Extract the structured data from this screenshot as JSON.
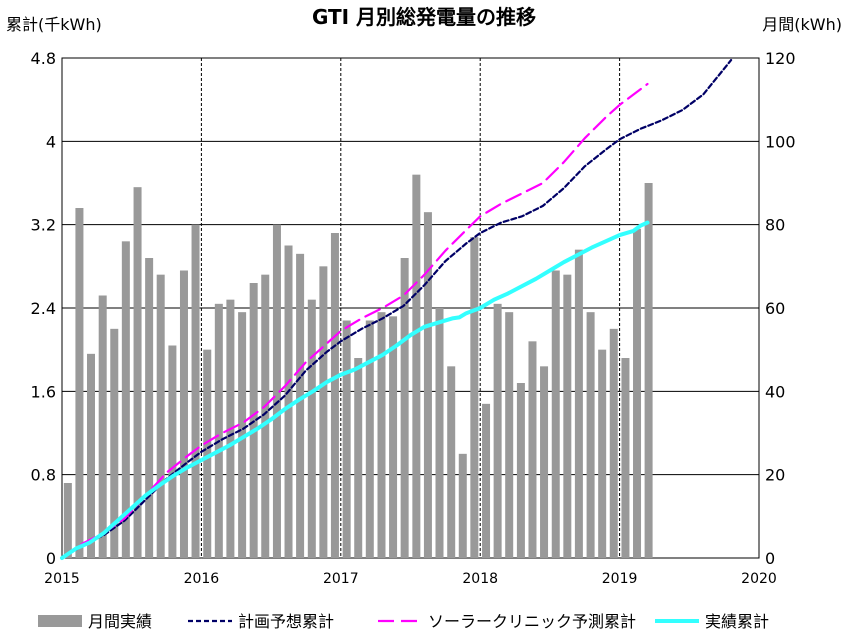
{
  "chart_data": {
    "type": "bar+line",
    "title": "GTI 月別総発電量の推移",
    "ylabel_left": "累計(千kWh)",
    "ylabel_right": "月間(kWh)",
    "x_tick_labels": [
      "2015",
      "2016",
      "2017",
      "2018",
      "2019",
      "2020"
    ],
    "xlim": [
      2015,
      2020
    ],
    "ylim_left": [
      0,
      4.8
    ],
    "ylim_right": [
      0,
      120
    ],
    "y_left_ticks": [
      "0",
      "0.8",
      "1.6",
      "2.4",
      "3.2",
      "4",
      "4.8"
    ],
    "y_right_ticks": [
      "0",
      "20",
      "40",
      "60",
      "80",
      "100",
      "120"
    ],
    "grid": "horizontal solid, vertical dashed at years",
    "legend_position": "bottom",
    "colors": {
      "bars": "#999999",
      "plan": "#000066",
      "clinic": "#ff00ff",
      "actual": "#33ffff"
    },
    "bars": {
      "name": "月間実績",
      "axis": "right",
      "x": [
        2015.042,
        2015.125,
        2015.208,
        2015.292,
        2015.375,
        2015.458,
        2015.542,
        2015.625,
        2015.708,
        2015.792,
        2015.875,
        2015.958,
        2016.042,
        2016.125,
        2016.208,
        2016.292,
        2016.375,
        2016.458,
        2016.542,
        2016.625,
        2016.708,
        2016.792,
        2016.875,
        2016.958,
        2017.042,
        2017.125,
        2017.208,
        2017.292,
        2017.375,
        2017.458,
        2017.542,
        2017.625,
        2017.708,
        2017.792,
        2017.875,
        2017.958,
        2018.042,
        2018.125,
        2018.208,
        2018.292,
        2018.375,
        2018.458,
        2018.542,
        2018.625,
        2018.708,
        2018.792,
        2018.875,
        2018.958,
        2019.042,
        2019.125,
        2019.208
      ],
      "values": [
        18,
        84,
        49,
        63,
        55,
        76,
        89,
        72,
        68,
        51,
        69,
        80,
        50,
        61,
        62,
        59,
        66,
        68,
        80,
        75,
        73,
        62,
        70,
        78,
        57,
        48,
        57,
        59,
        58,
        72,
        92,
        83,
        60,
        46,
        25,
        77,
        37,
        61,
        59,
        42,
        52,
        46,
        69,
        68,
        74,
        59,
        50,
        55,
        48,
        79,
        90
      ]
    },
    "series": [
      {
        "name": "計画予想累計",
        "axis": "left",
        "style": "dotted",
        "x": [
          2015.0,
          2015.15,
          2015.3,
          2015.45,
          2015.6,
          2015.75,
          2015.9,
          2016.0,
          2016.15,
          2016.3,
          2016.45,
          2016.6,
          2016.75,
          2016.9,
          2017.0,
          2017.15,
          2017.3,
          2017.45,
          2017.6,
          2017.75,
          2017.9,
          2018.0,
          2018.15,
          2018.3,
          2018.45,
          2018.6,
          2018.75,
          2018.9,
          2019.0,
          2019.15,
          2019.3,
          2019.45,
          2019.6,
          2019.8
        ],
        "values": [
          0.0,
          0.12,
          0.22,
          0.36,
          0.56,
          0.76,
          0.92,
          1.02,
          1.14,
          1.24,
          1.38,
          1.56,
          1.8,
          1.98,
          2.08,
          2.2,
          2.3,
          2.42,
          2.62,
          2.85,
          3.02,
          3.12,
          3.22,
          3.28,
          3.38,
          3.55,
          3.76,
          3.92,
          4.02,
          4.12,
          4.2,
          4.3,
          4.45,
          4.78
        ]
      },
      {
        "name": "ソーラークリニック予測累計",
        "axis": "left",
        "style": "dashed",
        "x": [
          2015.0,
          2015.15,
          2015.3,
          2015.45,
          2015.6,
          2015.75,
          2015.9,
          2016.0,
          2016.15,
          2016.3,
          2016.45,
          2016.6,
          2016.75,
          2016.9,
          2017.0,
          2017.15,
          2017.3,
          2017.45,
          2017.6,
          2017.75,
          2017.9,
          2018.0,
          2018.15,
          2018.3,
          2018.45,
          2018.6,
          2018.75,
          2018.9,
          2019.0,
          2019.1,
          2019.2
        ],
        "values": [
          0.0,
          0.14,
          0.24,
          0.38,
          0.6,
          0.82,
          0.98,
          1.08,
          1.2,
          1.3,
          1.45,
          1.65,
          1.88,
          2.06,
          2.18,
          2.3,
          2.4,
          2.52,
          2.72,
          2.95,
          3.15,
          3.28,
          3.4,
          3.5,
          3.6,
          3.8,
          4.03,
          4.23,
          4.35,
          4.45,
          4.55
        ]
      },
      {
        "name": "実績累計",
        "axis": "left",
        "style": "solid",
        "x": [
          2015.0,
          2015.1,
          2015.2,
          2015.3,
          2015.4,
          2015.5,
          2015.6,
          2015.7,
          2015.8,
          2015.9,
          2016.0,
          2016.1,
          2016.2,
          2016.3,
          2016.4,
          2016.5,
          2016.6,
          2016.7,
          2016.8,
          2016.9,
          2017.0,
          2017.1,
          2017.2,
          2017.3,
          2017.4,
          2017.5,
          2017.6,
          2017.7,
          2017.8,
          2017.85,
          2017.9,
          2018.0,
          2018.1,
          2018.2,
          2018.3,
          2018.4,
          2018.5,
          2018.6,
          2018.7,
          2018.8,
          2018.9,
          2019.0,
          2019.1,
          2019.15,
          2019.2
        ],
        "values": [
          0.0,
          0.09,
          0.15,
          0.24,
          0.36,
          0.48,
          0.6,
          0.7,
          0.79,
          0.87,
          0.94,
          1.01,
          1.08,
          1.16,
          1.24,
          1.33,
          1.43,
          1.52,
          1.6,
          1.69,
          1.76,
          1.81,
          1.88,
          1.95,
          2.04,
          2.14,
          2.22,
          2.26,
          2.3,
          2.31,
          2.35,
          2.4,
          2.48,
          2.54,
          2.61,
          2.68,
          2.76,
          2.84,
          2.91,
          2.98,
          3.04,
          3.1,
          3.14,
          3.19,
          3.22
        ]
      }
    ]
  }
}
